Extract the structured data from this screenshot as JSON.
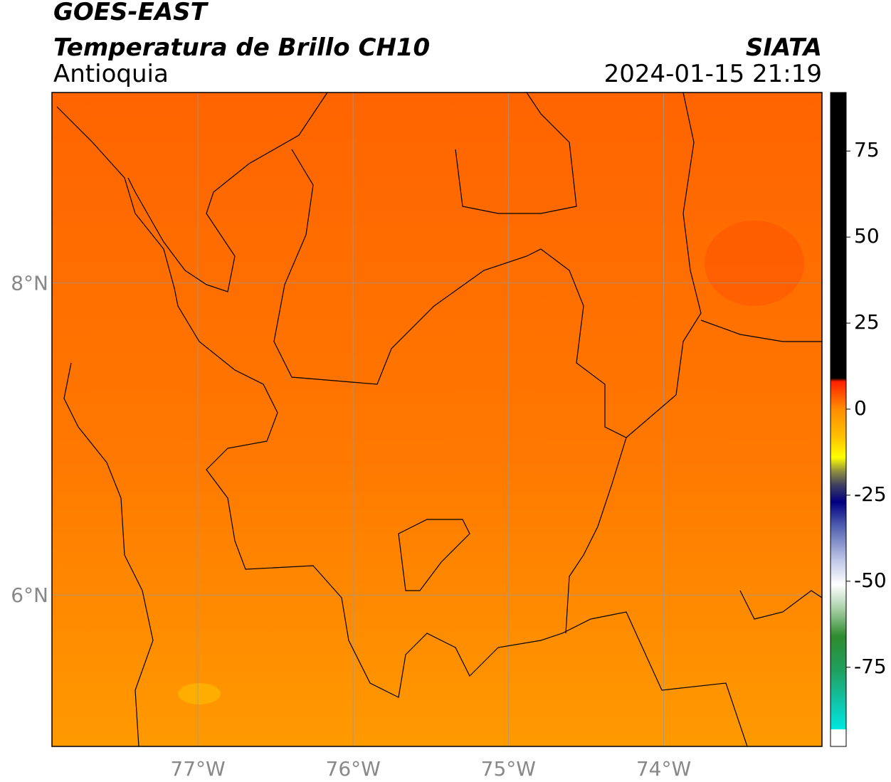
{
  "header": {
    "title": "GOES-EAST",
    "subtitle": "Temperatura de Brillo CH10",
    "region": "Antioquia",
    "source": "SIATA",
    "datetime": "2024-01-15 21:19"
  },
  "map": {
    "xlim": [
      -77.94,
      -72.98
    ],
    "ylim": [
      5.03,
      9.22
    ],
    "xticks": [
      {
        "value": -77,
        "label": "77°W"
      },
      {
        "value": -76,
        "label": "76°W"
      },
      {
        "value": -75,
        "label": "75°W"
      },
      {
        "value": -74,
        "label": "74°W"
      }
    ],
    "yticks": [
      {
        "value": 8,
        "label": "8°N"
      },
      {
        "value": 6,
        "label": "6°N"
      }
    ],
    "grid": true
  },
  "colorbar": {
    "lim": [
      -98,
      92
    ],
    "ticks": [
      75,
      50,
      25,
      0,
      -25,
      -50,
      -75
    ],
    "stops": [
      {
        "value": -98,
        "color": "#ffffff"
      },
      {
        "value": -93,
        "color": "#ffffff"
      },
      {
        "value": -93,
        "color": "#00e8e0"
      },
      {
        "value": -86,
        "color": "#10c8b0"
      },
      {
        "value": -76,
        "color": "#20a060"
      },
      {
        "value": -66,
        "color": "#2e8b2e"
      },
      {
        "value": -58,
        "color": "#a8d0a8"
      },
      {
        "value": -51,
        "color": "#ffffff"
      },
      {
        "value": -44,
        "color": "#c0c8e8"
      },
      {
        "value": -34,
        "color": "#5060b0"
      },
      {
        "value": -27,
        "color": "#000080"
      },
      {
        "value": -22,
        "color": "#404060"
      },
      {
        "value": -18,
        "color": "#909040"
      },
      {
        "value": -14,
        "color": "#ffff00"
      },
      {
        "value": -8,
        "color": "#ffc000"
      },
      {
        "value": 0,
        "color": "#ff8c00"
      },
      {
        "value": 8,
        "color": "#ff2000"
      },
      {
        "value": 9,
        "color": "#000000"
      },
      {
        "value": 92,
        "color": "#000000"
      }
    ]
  }
}
